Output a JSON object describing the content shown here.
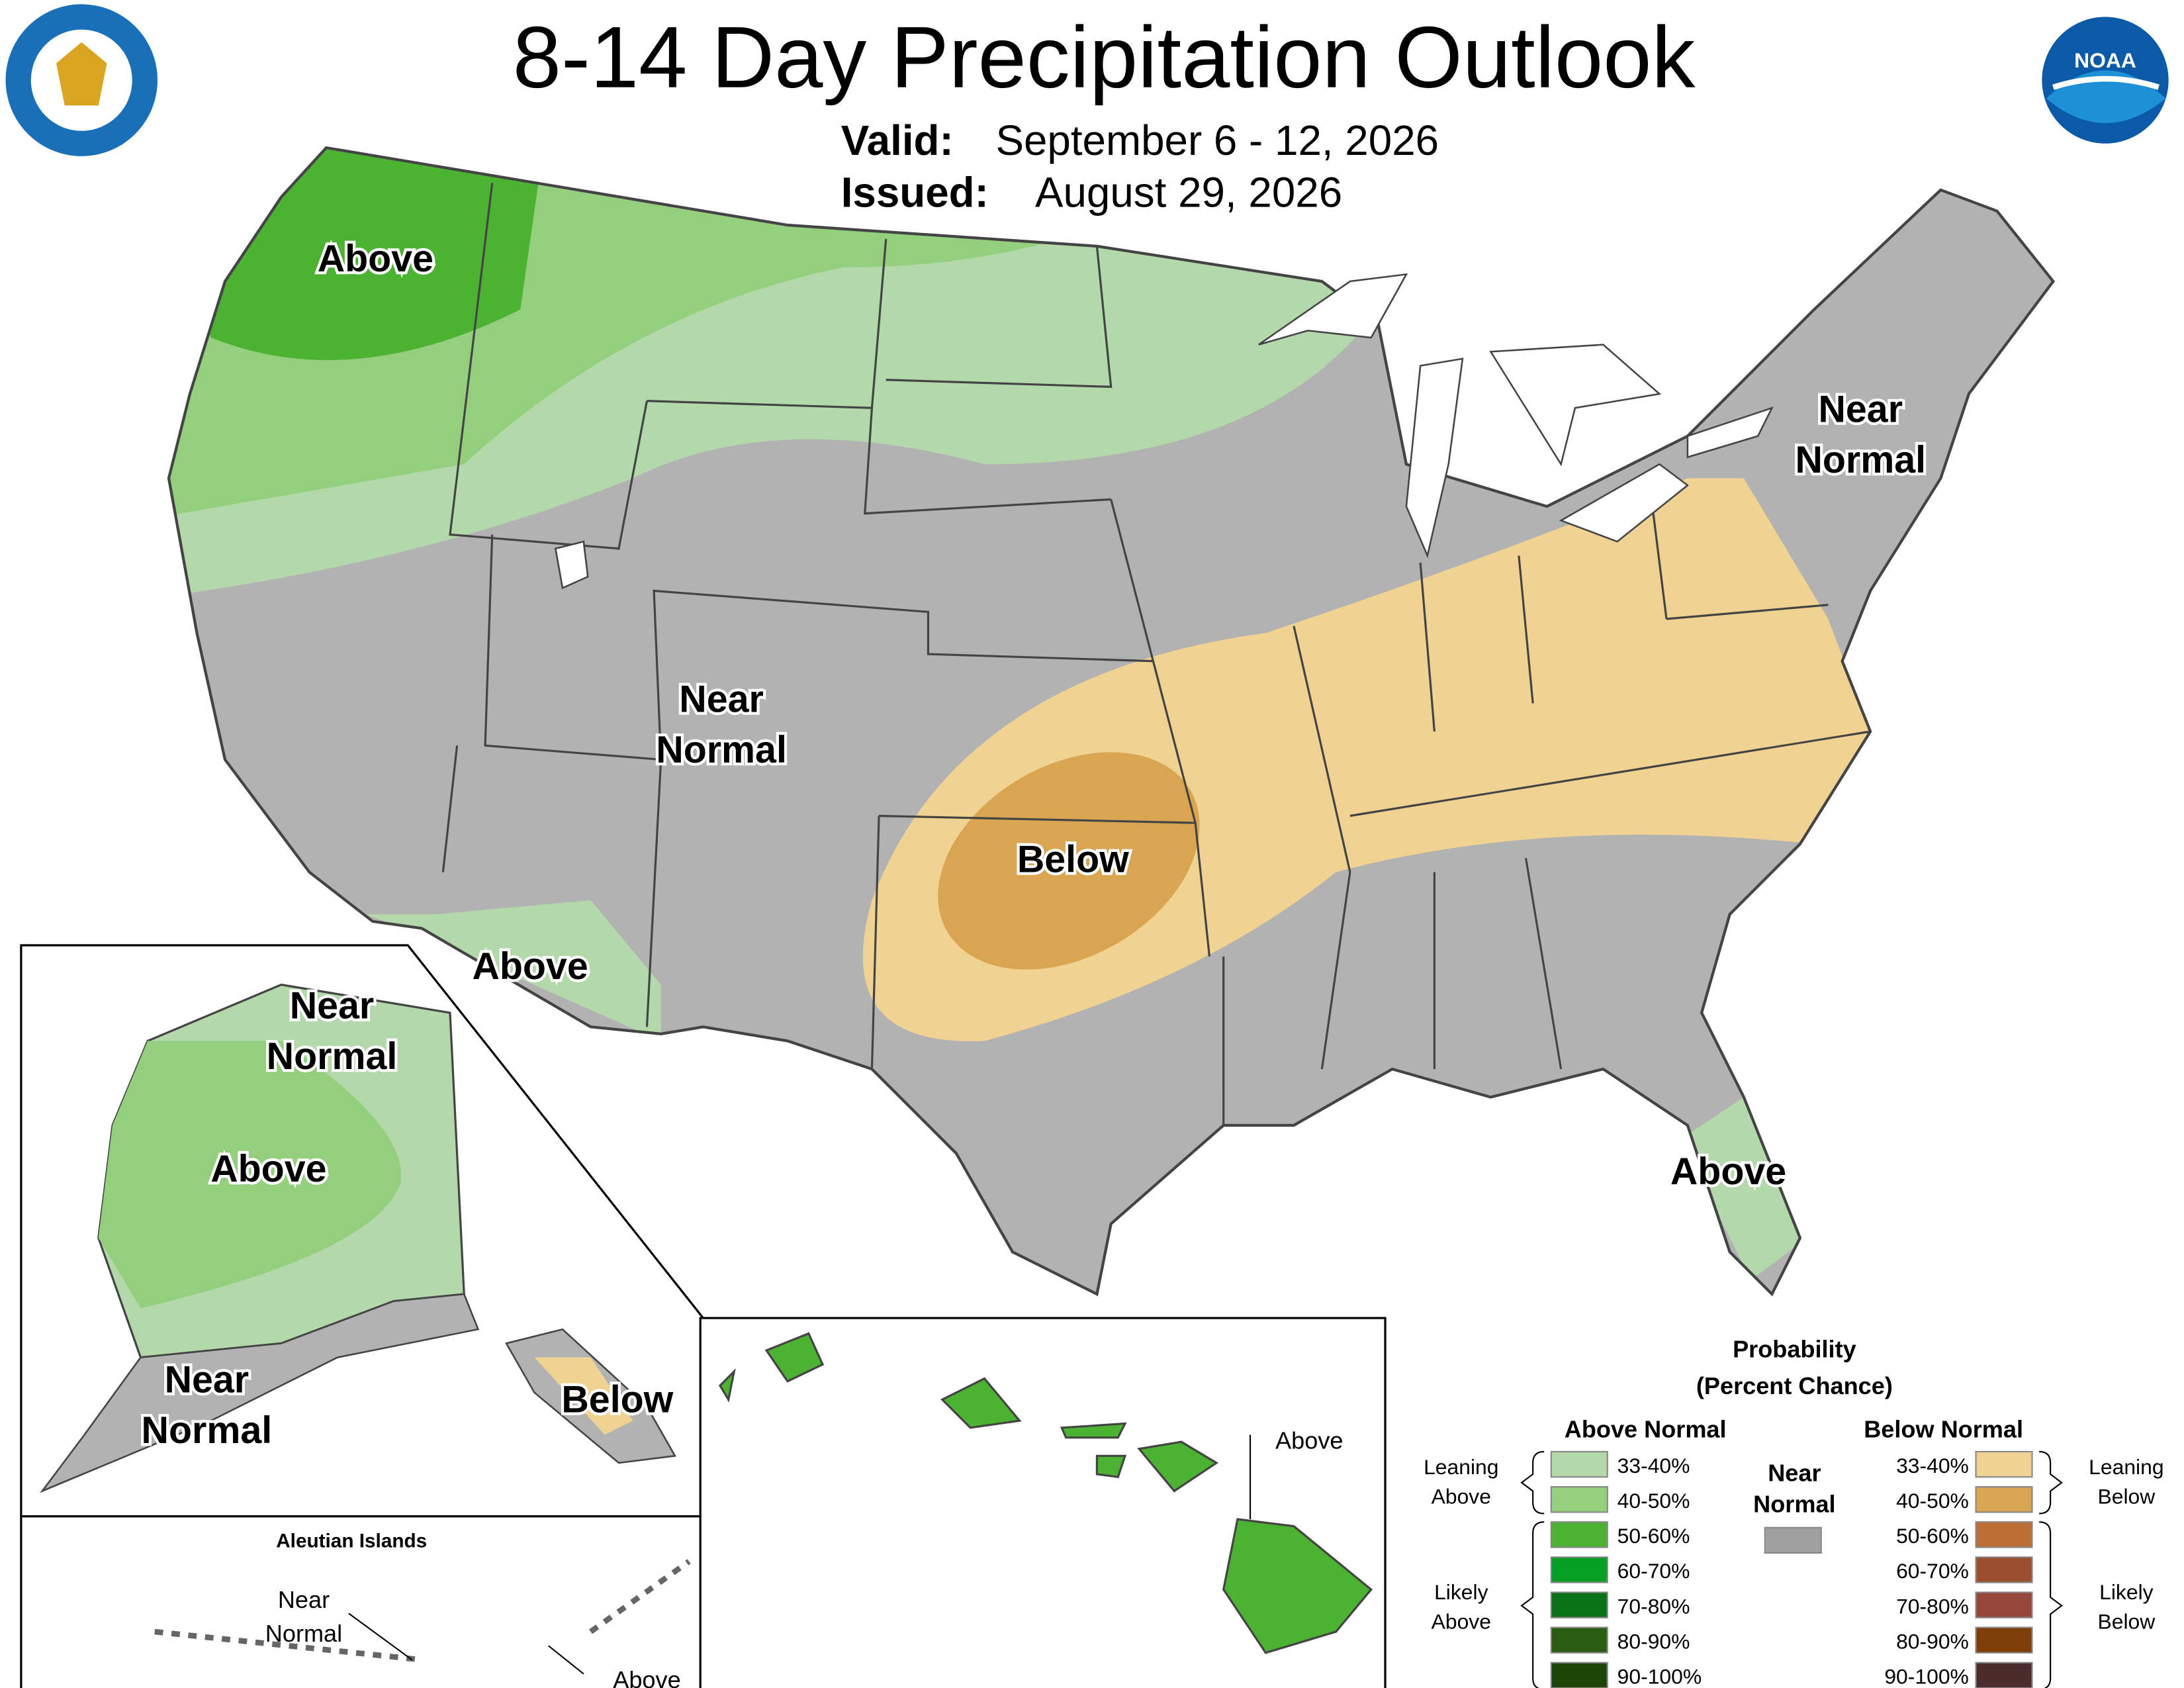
{
  "header": {
    "title": "8-14 Day Precipitation Outlook",
    "valid_label": "Valid:",
    "valid": "September 6 - 12, 2026",
    "issued_label": "Issued:",
    "issued": "August 29, 2026",
    "noaa_logo": "NOAA"
  },
  "map_labels": [
    {
      "lines": [
        "Above"
      ]
    },
    {
      "lines": [
        "Near",
        "Normal"
      ]
    },
    {
      "lines": [
        "Near",
        "Normal"
      ]
    },
    {
      "lines": [
        "Below"
      ]
    },
    {
      "lines": [
        "Above"
      ]
    },
    {
      "lines": [
        "Above"
      ]
    }
  ],
  "alaska_labels": [
    {
      "lines": [
        "Near",
        "Normal"
      ]
    },
    {
      "lines": [
        "Above"
      ]
    },
    {
      "lines": [
        "Near",
        "Normal"
      ]
    },
    {
      "lines": [
        "Below"
      ]
    }
  ],
  "aleutian": {
    "title": "Aleutian Islands",
    "labels": [
      {
        "lines": [
          "Near",
          "Normal"
        ]
      },
      {
        "lines": [
          "Above"
        ]
      }
    ]
  },
  "hawaii": {
    "labels": [
      {
        "lines": [
          "Above"
        ]
      }
    ]
  },
  "legend": {
    "title": [
      "Probability",
      "(Percent Chance)"
    ],
    "above_heading": "Above Normal",
    "below_heading": "Below Normal",
    "near_heading": [
      "Near",
      "Normal"
    ],
    "near_color": "#a0a0a0",
    "above": [
      {
        "range": "33-40%",
        "color": "#b3d9ab"
      },
      {
        "range": "40-50%",
        "color": "#93cf7d"
      },
      {
        "range": "50-60%",
        "color": "#4cb232"
      },
      {
        "range": "60-70%",
        "color": "#079e25"
      },
      {
        "range": "70-80%",
        "color": "#077316"
      },
      {
        "range": "80-90%",
        "color": "#2a5c12"
      },
      {
        "range": "90-100%",
        "color": "#1f4407"
      }
    ],
    "below": [
      {
        "range": "33-40%",
        "color": "#f0d393"
      },
      {
        "range": "40-50%",
        "color": "#d9a550"
      },
      {
        "range": "50-60%",
        "color": "#bd6e32"
      },
      {
        "range": "60-70%",
        "color": "#9c4f2c"
      },
      {
        "range": "70-80%",
        "color": "#95473c"
      },
      {
        "range": "80-90%",
        "color": "#7e3e07"
      },
      {
        "range": "90-100%",
        "color": "#4c2b2b"
      }
    ],
    "brackets": {
      "leaning_above": [
        "Leaning",
        "Above"
      ],
      "likely_above": [
        "Likely",
        "Above"
      ],
      "leaning_below": [
        "Leaning",
        "Below"
      ],
      "likely_below": [
        "Likely",
        "Below"
      ]
    }
  }
}
